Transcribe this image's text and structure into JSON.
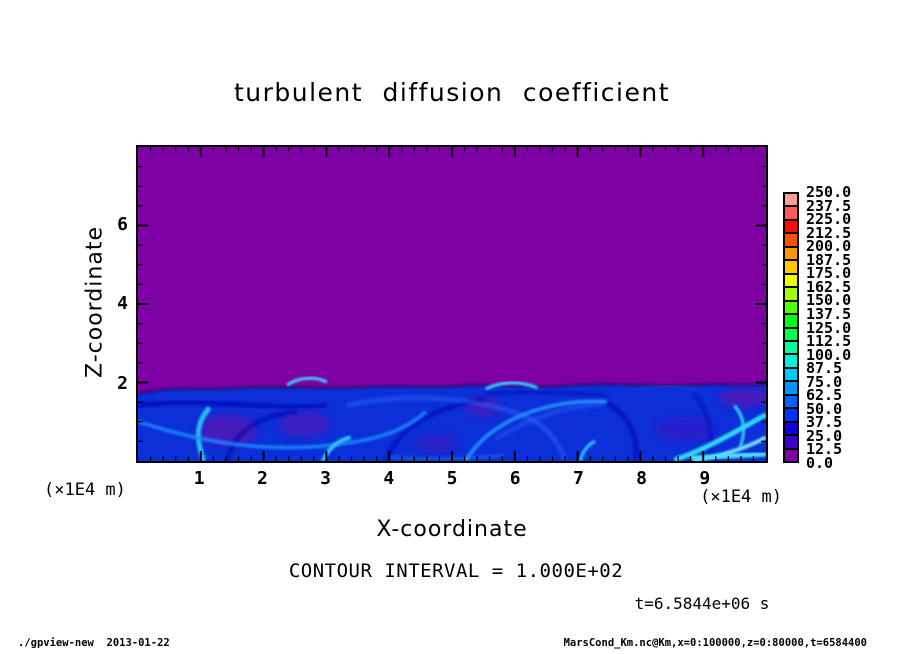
{
  "page": {
    "background": "#ffffff",
    "foreground": "#000000"
  },
  "header": {
    "title": "turbulent diffusion coefficient"
  },
  "axes": {
    "x": {
      "label": "X-coordinate",
      "units": "(×1E4 m)",
      "min": 0,
      "max": 10,
      "ticks": [
        1,
        2,
        3,
        4,
        5,
        6,
        7,
        8,
        9
      ],
      "minor_step": 0.2
    },
    "y": {
      "label": "Z-coordinate",
      "units": "(×1E4 m)",
      "min": 0,
      "max": 8,
      "ticks": [
        2,
        4,
        6
      ],
      "minor_step": 0.5
    }
  },
  "colorbar": {
    "boundary_labels_top_down": [
      "250.0",
      "237.5",
      "225.0",
      "212.5",
      "200.0",
      "187.5",
      "175.0",
      "162.5",
      "150.0",
      "137.5",
      "125.0",
      "112.5",
      "100.0",
      "87.5",
      "75.0",
      "62.5",
      "50.0",
      "37.5",
      "25.0",
      "12.5",
      "0.0"
    ],
    "colors_bottom_up": [
      "#7E00A5",
      "#3C00C8",
      "#0F00DC",
      "#0032FF",
      "#0064FF",
      "#0096FF",
      "#00C8FF",
      "#00F0DC",
      "#00FF96",
      "#00FF50",
      "#00FF14",
      "#50FF00",
      "#A0FF00",
      "#F0FF00",
      "#FFC800",
      "#FF9600",
      "#FF5000",
      "#FF0A00",
      "#FF5A5A",
      "#FF9C9C"
    ]
  },
  "annotations": {
    "contour_interval": "CONTOUR INTERVAL = 1.000E+02",
    "time_stamp": "t=6.5844e+06 s"
  },
  "footer": {
    "left": "./gpview-new  2013-01-22",
    "right": "MarsCond_Km.nc@Km,x=0:100000,z=0:80000,t=6584400"
  },
  "chart_data": {
    "type": "heatmap",
    "title": "turbulent diffusion coefficient",
    "xlabel": "X-coordinate (×1E4 m)",
    "ylabel": "Z-coordinate (×1E4 m)",
    "xlim": [
      0,
      10
    ],
    "ylim": [
      0,
      8
    ],
    "x_major_ticks": [
      1,
      2,
      3,
      4,
      5,
      6,
      7,
      8,
      9
    ],
    "x_minor_tick_step": 0.2,
    "y_major_ticks": [
      2,
      4,
      6
    ],
    "y_minor_tick_step": 0.5,
    "grid": false,
    "legend_position": "right-colorbar",
    "colorbar": {
      "min": 0.0,
      "max": 250.0,
      "interval": 12.5,
      "boundaries": [
        0,
        12.5,
        25,
        37.5,
        50,
        62.5,
        75,
        87.5,
        100,
        112.5,
        125,
        137.5,
        150,
        162.5,
        175,
        187.5,
        200,
        212.5,
        225,
        237.5,
        250
      ],
      "colors_bottom_up": [
        "#7E00A5",
        "#3C00C8",
        "#0F00DC",
        "#0032FF",
        "#0064FF",
        "#0096FF",
        "#00C8FF",
        "#00F0DC",
        "#00FF96",
        "#00FF50",
        "#00FF14",
        "#50FF00",
        "#A0FF00",
        "#F0FF00",
        "#FFC800",
        "#FF9600",
        "#FF5000",
        "#FF0A00",
        "#FF5A5A",
        "#FF9C9C"
      ]
    },
    "contour_interval": 100.0,
    "time_annotation": "t=6.5844e+06 s",
    "field_summary": "Turbulent diffusion coefficient is ~0 (lowest bin 0-12.5, purple) everywhere above z≈2e4 m; below z≈2e4 m lies a turbulent boundary layer rendered in blues (~12.5-75) with bright cyan filaments reaching ~75-100 and embedded purple low-value vortex cores.",
    "approx_field": {
      "x_centers": [
        0.5,
        1.5,
        2.5,
        3.5,
        4.5,
        5.5,
        6.5,
        7.5,
        8.5,
        9.5
      ],
      "z_rows_top_down": [
        {
          "z": 7.0,
          "values": [
            5,
            5,
            5,
            5,
            5,
            5,
            5,
            5,
            5,
            5
          ]
        },
        {
          "z": 5.0,
          "values": [
            5,
            5,
            5,
            5,
            5,
            5,
            5,
            5,
            5,
            5
          ]
        },
        {
          "z": 3.0,
          "values": [
            5,
            5,
            5,
            5,
            5,
            5,
            5,
            5,
            5,
            5
          ]
        },
        {
          "z": 1.5,
          "values": [
            40,
            35,
            30,
            45,
            40,
            35,
            45,
            30,
            35,
            50
          ]
        },
        {
          "z": 0.5,
          "values": [
            55,
            65,
            45,
            60,
            70,
            50,
            45,
            55,
            75,
            65
          ]
        }
      ]
    }
  }
}
